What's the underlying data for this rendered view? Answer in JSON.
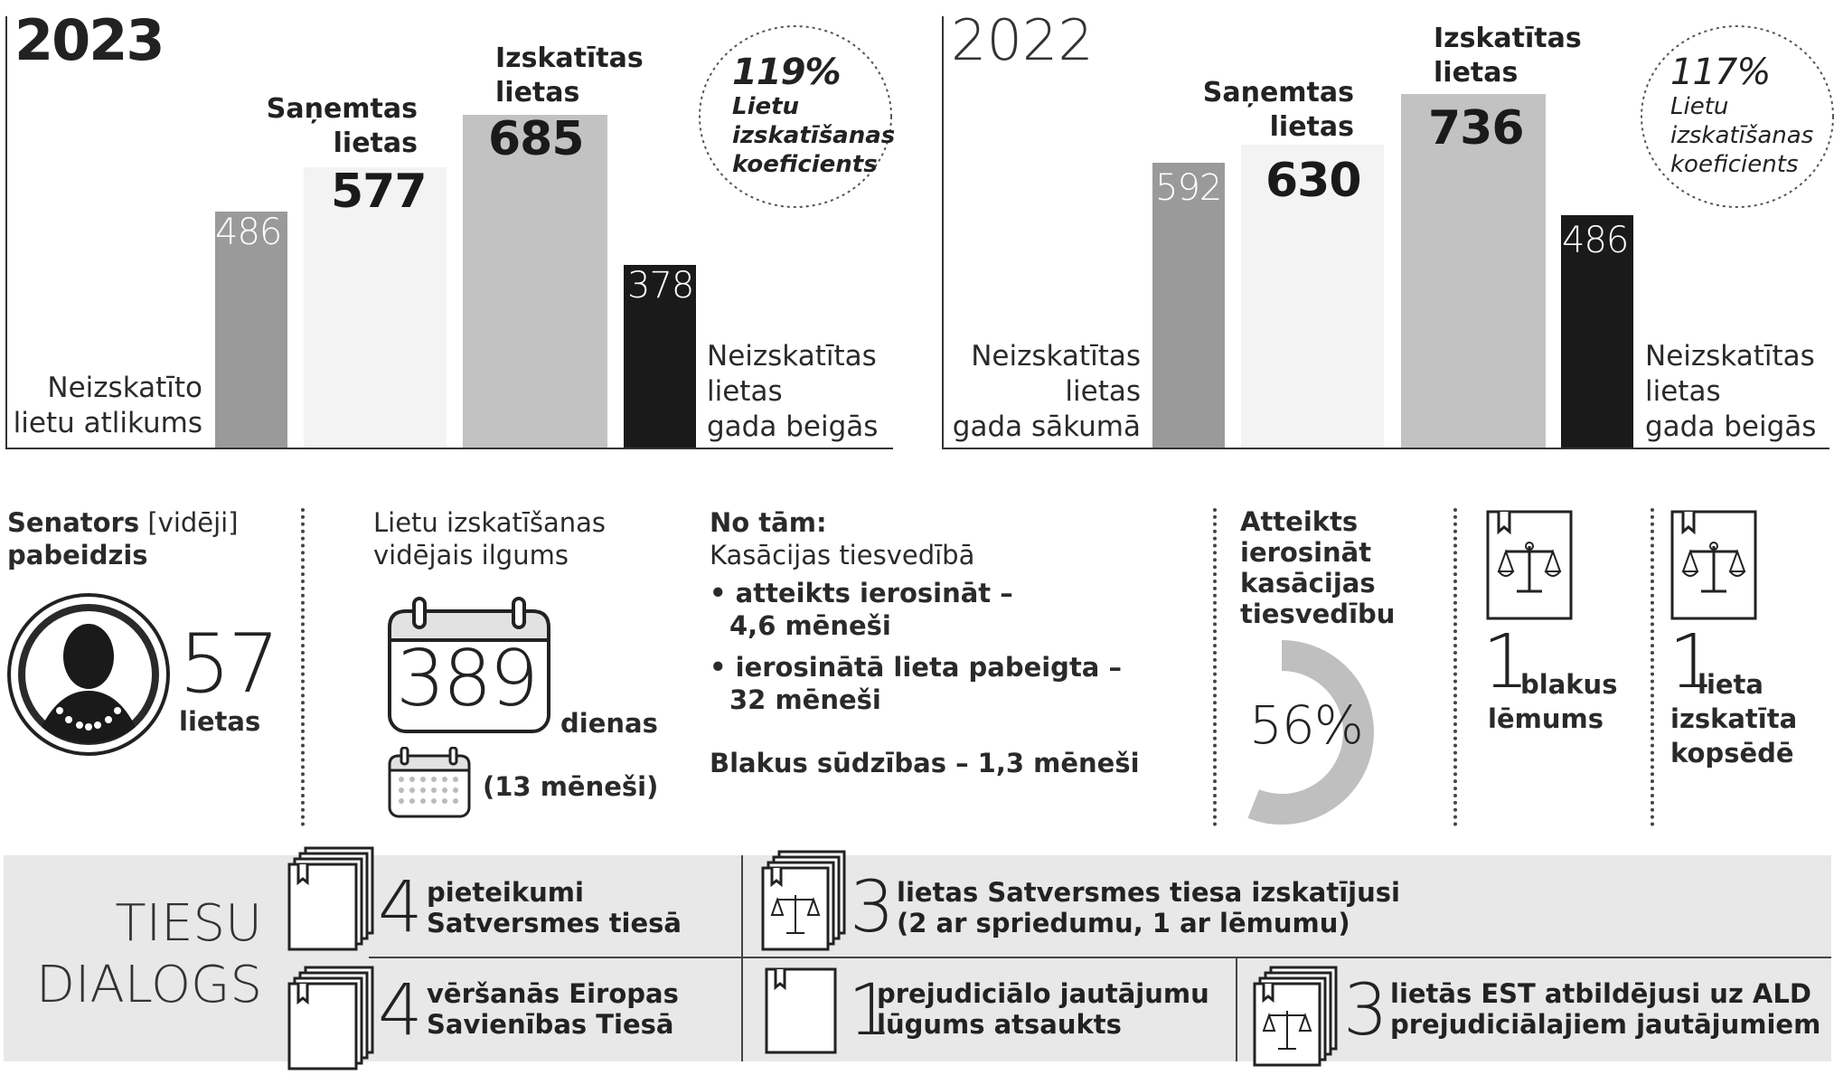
{
  "y2023": {
    "year": "2023",
    "label_start": [
      "Neizskatīto",
      "lietu atlikums"
    ],
    "label_end": [
      "Neizskatītas",
      "lietas",
      "gada beigās"
    ],
    "received_label": [
      "Saņemtas",
      "lietas"
    ],
    "reviewed_label": [
      "Izskatītas",
      "lietas"
    ],
    "start_value": "486",
    "received_value": "577",
    "reviewed_value": "685",
    "end_value": "378",
    "coef_pct": "119%",
    "coef_label": [
      "Lietu",
      "izskatīšanas",
      "koeficients"
    ]
  },
  "y2022": {
    "year": "2022",
    "label_start": [
      "Neizskatītas",
      "lietas",
      "gada sākumā"
    ],
    "label_end": [
      "Neizskatītas",
      "lietas",
      "gada beigās"
    ],
    "received_label": [
      "Saņemtas",
      "lietas"
    ],
    "reviewed_label": [
      "Izskatītas",
      "lietas"
    ],
    "start_value": "592",
    "received_value": "630",
    "reviewed_value": "736",
    "end_value": "486",
    "coef_pct": "117%",
    "coef_label": [
      "Lietu",
      "izskatīšanas",
      "koeficients"
    ]
  },
  "senator": {
    "title_bold": "Senators",
    "title_rest": " [vidēji]",
    "subtitle": "pabeidzis",
    "number": "57",
    "unit": "lietas"
  },
  "duration": {
    "title": [
      "Lietu izskatīšanas",
      "vidējais ilgums"
    ],
    "days": "389",
    "days_unit": "dienas",
    "months": "(13 mēneši)"
  },
  "breakdown": {
    "title": "No tām:",
    "subtitle": "Kasācijas tiesvedībā",
    "item1": [
      "• atteikts ierosināt –",
      "4,6 mēneši"
    ],
    "item2": [
      "• ierosinātā lieta pabeigta –",
      "32 mēneši"
    ],
    "side": "Blakus sūdzības – 1,3 mēneši"
  },
  "refused": {
    "title": [
      "Atteikts",
      "ierosināt",
      "kasācijas",
      "tiesvedību"
    ],
    "pct": "56%",
    "fraction": 0.56
  },
  "side_decisions": {
    "number": "1",
    "label": [
      "blakus",
      "lēmums"
    ]
  },
  "joint_session": {
    "number": "1",
    "label": [
      "lieta",
      "izskatīta",
      "kopsēdē"
    ]
  },
  "dialog": {
    "title": [
      "TIESU",
      "DIALOGS"
    ],
    "r1c1": {
      "number": "4",
      "text": [
        "pieteikumi",
        "Satversmes tiesā"
      ]
    },
    "r1c2": {
      "number": "3",
      "text": [
        "lietas Satversmes tiesa izskatījusi",
        "(2 ar spriedumu, 1 ar lēmumu)"
      ]
    },
    "r2c1": {
      "number": "4",
      "text": [
        "vēršanās Eiropas",
        "Savienības Tiesā"
      ]
    },
    "r2c2": {
      "number": "1",
      "text": [
        "prejudiciālo jautājumu",
        "lūgums atsaukts"
      ]
    },
    "r2c3": {
      "number": "3",
      "text": [
        "lietās EST atbildējusi uz ALD",
        "prejudiciālajiem jautājumiem"
      ]
    }
  }
}
